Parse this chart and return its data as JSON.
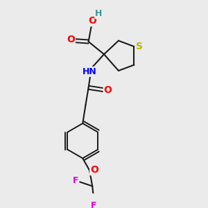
{
  "background_color": "#ebebeb",
  "bond_color": "#1a1a1a",
  "atom_colors": {
    "S": "#b8b800",
    "N": "#0000ff",
    "O": "#ff0000",
    "F": "#dd00dd",
    "H_teal": "#3d9696",
    "C": "#1a1a1a"
  },
  "font_size": 9,
  "fig_width": 3.0,
  "fig_height": 3.0,
  "xlim": [
    0,
    10
  ],
  "ylim": [
    0,
    10
  ]
}
